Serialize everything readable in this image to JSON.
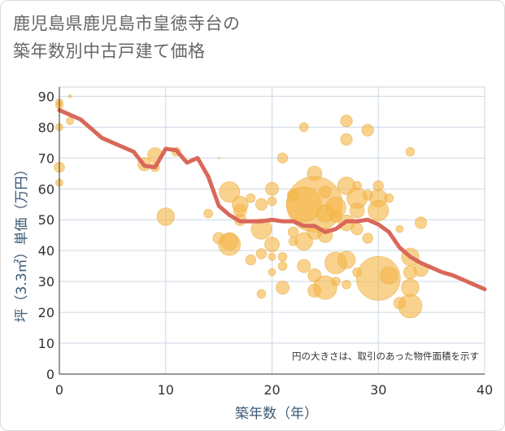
{
  "title_lines": [
    "鹿児島県鹿児島市皇徳寺台の",
    "築年数別中古戸建て価格"
  ],
  "chart_data": {
    "type": "scatter",
    "title": "鹿児島県鹿児島市皇徳寺台の築年数別中古戸建て価格",
    "xlabel": "築年数（年）",
    "ylabel": "坪（3.3㎡）単価（万円）",
    "xlim": [
      0,
      40
    ],
    "ylim": [
      0,
      93
    ],
    "xticks": [
      0,
      10,
      20,
      30,
      40
    ],
    "yticks": [
      0,
      10,
      20,
      30,
      40,
      50,
      60,
      70,
      80,
      90
    ],
    "grid": true,
    "annotation": "円の大きさは、取引のあった物件面積を示す",
    "colors": {
      "bubble": "#f5b748",
      "line": "#d9685a",
      "grid": "#ccd7e3"
    },
    "trend": {
      "name": "平均",
      "x": [
        0,
        1,
        2,
        3,
        4,
        5,
        6,
        7,
        8,
        9,
        10,
        11,
        12,
        13,
        14,
        15,
        16,
        17,
        18,
        19,
        20,
        21,
        22,
        23,
        24,
        25,
        26,
        27,
        28,
        29,
        30,
        31,
        32,
        33,
        34,
        35,
        36,
        37,
        38,
        39,
        40
      ],
      "y": [
        85.5,
        84,
        82.5,
        79.5,
        76.5,
        75,
        73.5,
        72,
        67.5,
        67,
        73,
        72.5,
        68.5,
        70,
        64,
        54.5,
        51.5,
        49.5,
        49.5,
        49.5,
        50,
        49.5,
        49.5,
        48,
        48,
        46,
        47,
        49.5,
        49.5,
        50,
        48.5,
        46,
        41,
        38,
        36,
        34.5,
        33,
        32,
        30.5,
        29,
        27.5
      ]
    },
    "bubbles": [
      {
        "x": 0,
        "y": 88,
        "s": 5
      },
      {
        "x": 0,
        "y": 87,
        "s": 5
      },
      {
        "x": 0,
        "y": 80,
        "s": 5
      },
      {
        "x": 0,
        "y": 67,
        "s": 7
      },
      {
        "x": 0,
        "y": 62,
        "s": 5
      },
      {
        "x": 1,
        "y": 90,
        "s": 2
      },
      {
        "x": 1,
        "y": 82,
        "s": 5
      },
      {
        "x": 8,
        "y": 68,
        "s": 9
      },
      {
        "x": 9,
        "y": 71,
        "s": 10
      },
      {
        "x": 9,
        "y": 67,
        "s": 6
      },
      {
        "x": 10,
        "y": 51,
        "s": 12
      },
      {
        "x": 11,
        "y": 72,
        "s": 6
      },
      {
        "x": 14,
        "y": 52,
        "s": 6
      },
      {
        "x": 15,
        "y": 70,
        "s": 1
      },
      {
        "x": 15,
        "y": 44,
        "s": 8
      },
      {
        "x": 16,
        "y": 59,
        "s": 14
      },
      {
        "x": 16,
        "y": 43,
        "s": 12
      },
      {
        "x": 16,
        "y": 42,
        "s": 15
      },
      {
        "x": 17,
        "y": 55,
        "s": 11
      },
      {
        "x": 17,
        "y": 53,
        "s": 9
      },
      {
        "x": 17,
        "y": 50,
        "s": 8
      },
      {
        "x": 18,
        "y": 57,
        "s": 6
      },
      {
        "x": 18,
        "y": 37,
        "s": 7
      },
      {
        "x": 19,
        "y": 55,
        "s": 8
      },
      {
        "x": 19,
        "y": 47,
        "s": 14
      },
      {
        "x": 19,
        "y": 39,
        "s": 7
      },
      {
        "x": 19,
        "y": 26,
        "s": 6
      },
      {
        "x": 20,
        "y": 60,
        "s": 9
      },
      {
        "x": 20,
        "y": 56,
        "s": 6
      },
      {
        "x": 20,
        "y": 42,
        "s": 10
      },
      {
        "x": 20,
        "y": 38,
        "s": 5
      },
      {
        "x": 20,
        "y": 33,
        "s": 5
      },
      {
        "x": 21,
        "y": 70,
        "s": 7
      },
      {
        "x": 21,
        "y": 38,
        "s": 6
      },
      {
        "x": 21,
        "y": 35,
        "s": 6
      },
      {
        "x": 21,
        "y": 28,
        "s": 9
      },
      {
        "x": 22,
        "y": 58,
        "s": 8
      },
      {
        "x": 22,
        "y": 46,
        "s": 7
      },
      {
        "x": 22,
        "y": 43,
        "s": 6
      },
      {
        "x": 23,
        "y": 80,
        "s": 6
      },
      {
        "x": 23,
        "y": 55,
        "s": 24
      },
      {
        "x": 23,
        "y": 43,
        "s": 12
      },
      {
        "x": 23,
        "y": 35,
        "s": 9
      },
      {
        "x": 24,
        "y": 65,
        "s": 10
      },
      {
        "x": 24,
        "y": 55,
        "s": 38
      },
      {
        "x": 24,
        "y": 46,
        "s": 10
      },
      {
        "x": 24,
        "y": 32,
        "s": 9
      },
      {
        "x": 24,
        "y": 27,
        "s": 9
      },
      {
        "x": 25,
        "y": 59,
        "s": 8
      },
      {
        "x": 25,
        "y": 52,
        "s": 12
      },
      {
        "x": 25,
        "y": 45,
        "s": 10
      },
      {
        "x": 25,
        "y": 28,
        "s": 16
      },
      {
        "x": 26,
        "y": 54,
        "s": 14
      },
      {
        "x": 26,
        "y": 51,
        "s": 8
      },
      {
        "x": 26,
        "y": 36,
        "s": 15
      },
      {
        "x": 26,
        "y": 30,
        "s": 6
      },
      {
        "x": 27,
        "y": 82,
        "s": 8
      },
      {
        "x": 27,
        "y": 76,
        "s": 8
      },
      {
        "x": 27,
        "y": 61,
        "s": 12
      },
      {
        "x": 27,
        "y": 49,
        "s": 11
      },
      {
        "x": 27,
        "y": 37,
        "s": 12
      },
      {
        "x": 27,
        "y": 29,
        "s": 6
      },
      {
        "x": 28,
        "y": 61,
        "s": 6
      },
      {
        "x": 28,
        "y": 57,
        "s": 14
      },
      {
        "x": 28,
        "y": 53,
        "s": 10
      },
      {
        "x": 28,
        "y": 47,
        "s": 8
      },
      {
        "x": 28,
        "y": 33,
        "s": 6
      },
      {
        "x": 29,
        "y": 79,
        "s": 8
      },
      {
        "x": 29,
        "y": 58,
        "s": 7
      },
      {
        "x": 29,
        "y": 44,
        "s": 7
      },
      {
        "x": 30,
        "y": 61,
        "s": 7
      },
      {
        "x": 30,
        "y": 57,
        "s": 12
      },
      {
        "x": 30,
        "y": 53,
        "s": 14
      },
      {
        "x": 30,
        "y": 31,
        "s": 30
      },
      {
        "x": 31,
        "y": 57,
        "s": 6
      },
      {
        "x": 31,
        "y": 32,
        "s": 12
      },
      {
        "x": 32,
        "y": 47,
        "s": 5
      },
      {
        "x": 32,
        "y": 23,
        "s": 8
      },
      {
        "x": 33,
        "y": 72,
        "s": 6
      },
      {
        "x": 33,
        "y": 38,
        "s": 12
      },
      {
        "x": 33,
        "y": 33,
        "s": 9
      },
      {
        "x": 33,
        "y": 28,
        "s": 12
      },
      {
        "x": 33,
        "y": 22,
        "s": 16
      },
      {
        "x": 34,
        "y": 49,
        "s": 8
      },
      {
        "x": 34,
        "y": 34,
        "s": 10
      }
    ]
  }
}
